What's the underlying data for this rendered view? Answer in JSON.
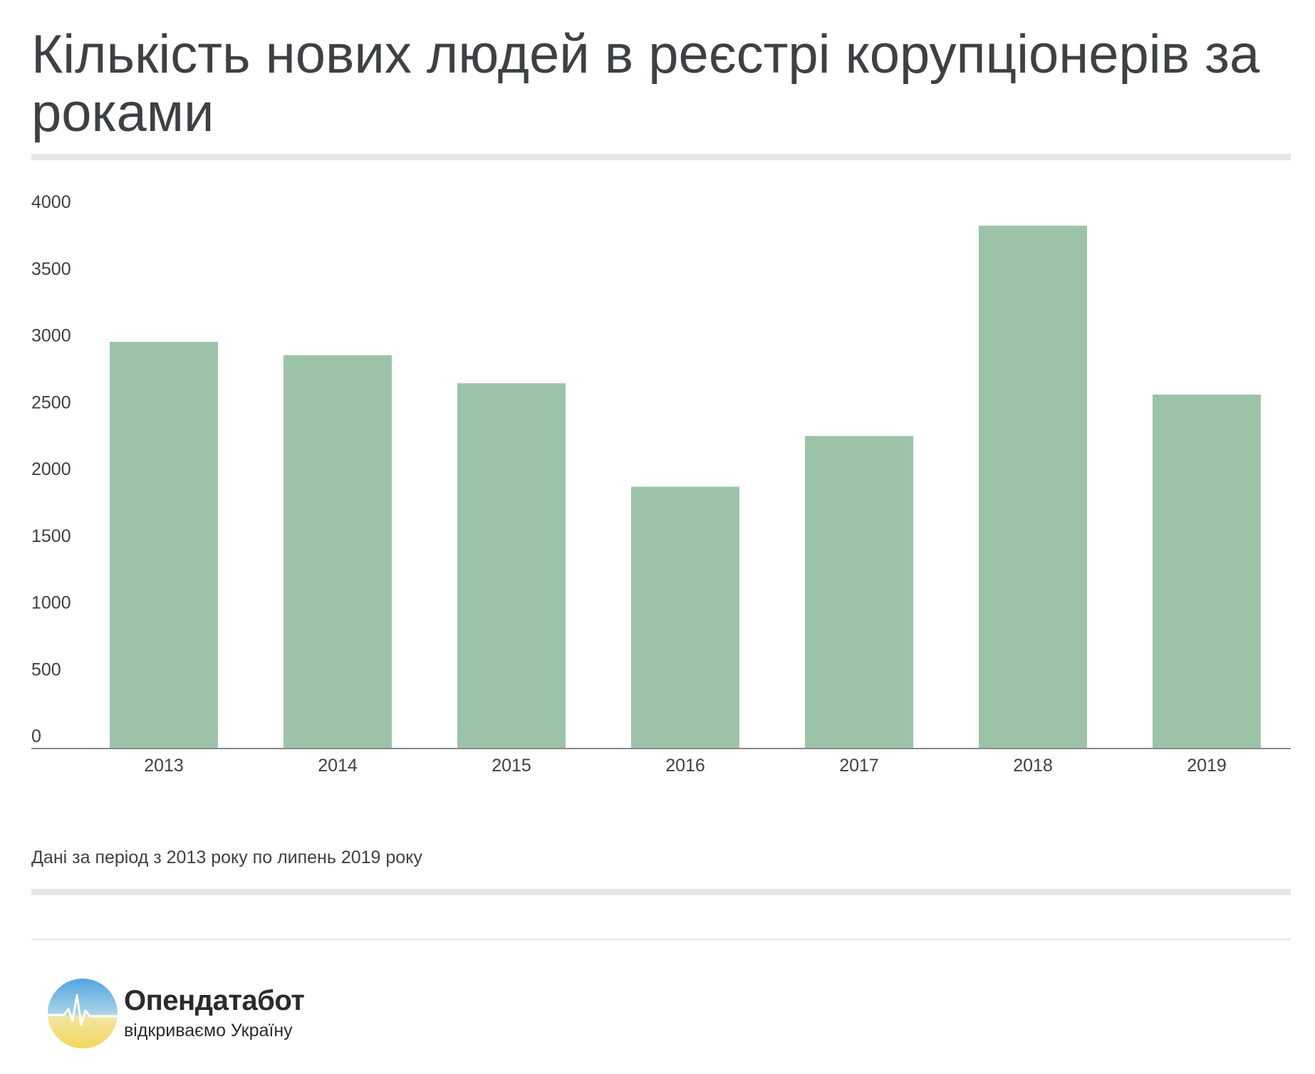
{
  "header": {
    "title": "Кількість нових людей в реєстрі корупціонерів за роками"
  },
  "chart_data": {
    "type": "bar",
    "title": "Кількість нових людей в реєстрі корупціонерів за роками",
    "categories": [
      "2013",
      "2014",
      "2015",
      "2016",
      "2017",
      "2018",
      "2019"
    ],
    "values": [
      3040,
      2940,
      2730,
      1955,
      2335,
      3910,
      2645
    ],
    "yticks": [
      "0",
      "500",
      "1000",
      "1500",
      "2000",
      "2500",
      "3000",
      "3500",
      "4000"
    ],
    "ylim": [
      0,
      4000
    ],
    "xlabel": "",
    "ylabel": "",
    "grid": false,
    "bar_color": "#9cc3a8",
    "axis_color": "#8a8a8a"
  },
  "footnote": {
    "text": "Дані за період з 2013 року по липень 2019 року"
  },
  "brand": {
    "name": "Опендатабот",
    "tagline": "відкриваємо Україну",
    "colors": {
      "blue": "#5aaee0",
      "yellow": "#f2dc6a",
      "dark": "#2b2b2b"
    }
  }
}
